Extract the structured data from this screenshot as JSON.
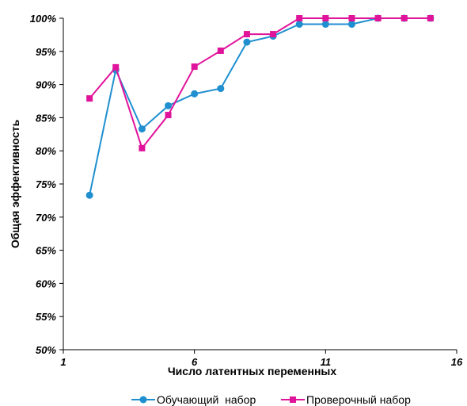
{
  "chart_data": {
    "type": "line",
    "xlabel": "Число латентных переменных",
    "ylabel": "Общая эффективность",
    "xlim": [
      1,
      16
    ],
    "xticks": [
      "1",
      "6",
      "11",
      "16"
    ],
    "ylim": [
      50,
      100
    ],
    "yticks": [
      "50%",
      "55%",
      "60%",
      "65%",
      "70%",
      "75%",
      "80%",
      "85%",
      "90%",
      "95%",
      "100%"
    ],
    "grid": false,
    "legend_position": "bottom",
    "x": [
      2,
      3,
      4,
      5,
      6,
      7,
      8,
      9,
      10,
      11,
      12,
      13,
      14,
      15
    ],
    "series": [
      {
        "name": "Обучающий  набор",
        "color": "#1f8fd0",
        "marker": "circle",
        "values": [
          73.3,
          92.2,
          83.3,
          86.8,
          88.6,
          89.4,
          96.4,
          97.3,
          99.1,
          99.1,
          99.1,
          100,
          100,
          100
        ]
      },
      {
        "name": "Проверочный набор",
        "color": "#e0149b",
        "marker": "square",
        "values": [
          87.9,
          92.6,
          80.4,
          85.4,
          92.7,
          95.1,
          97.6,
          97.6,
          100,
          100,
          100,
          100,
          100,
          100
        ]
      }
    ]
  }
}
